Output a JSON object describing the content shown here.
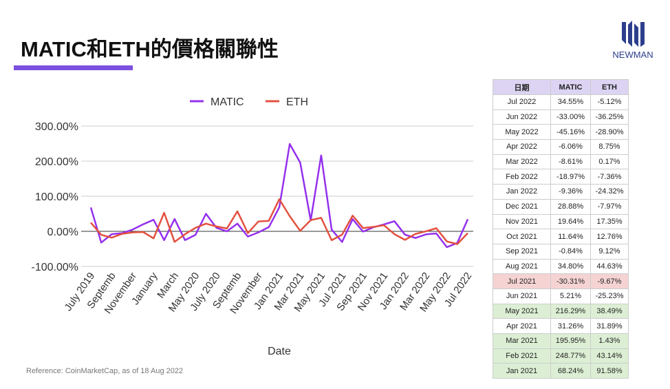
{
  "header": {
    "title": "MATIC和ETH的價格關聯性",
    "logo": "NEWMAN"
  },
  "reference": "Reference: CoinMarketCap, as of 18 Aug 2022",
  "chart_data": {
    "type": "line",
    "x_label": "Date",
    "categories": [
      "July 2019",
      null,
      "Septemb",
      null,
      "November",
      null,
      "January",
      null,
      "March",
      null,
      "May 2020",
      null,
      "July 2020",
      null,
      "Septemb",
      null,
      "November",
      null,
      "Jan 2021",
      null,
      "Mar 2021",
      null,
      "May 2021",
      null,
      "Jul 2021",
      null,
      "Sep 2021",
      null,
      "Nov 2021",
      null,
      "Jan 2022",
      null,
      "Mar 2022",
      null,
      "May 2022",
      null,
      "Jul 2022"
    ],
    "series": [
      {
        "name": "MATIC",
        "color": "#9430ee",
        "values": [
          68,
          -32,
          -8,
          -5,
          5,
          20,
          33,
          -25,
          35,
          -25,
          -10,
          50,
          10,
          0,
          22,
          -15,
          -3,
          12,
          68.24,
          248.77,
          195.95,
          31.26,
          216.29,
          5.21,
          -30.31,
          34.8,
          -0.84,
          11.64,
          19.64,
          28.88,
          -9.36,
          -18.97,
          -8.61,
          -6.06,
          -45.16,
          -33.0,
          34.55
        ]
      },
      {
        "name": "ETH",
        "color": "#e2503f",
        "values": [
          25,
          -10,
          -18,
          -7,
          -3,
          -2,
          -20,
          53,
          -30,
          -8,
          10,
          22,
          14,
          8,
          57,
          -5,
          28,
          30,
          91.58,
          43.14,
          1.43,
          31.89,
          38.49,
          -25.23,
          -9.67,
          44.63,
          9.12,
          12.76,
          17.35,
          -7.97,
          -24.32,
          -7.36,
          0.17,
          8.75,
          -28.9,
          -36.25,
          -5.12
        ]
      }
    ],
    "ylim": [
      -100,
      300
    ],
    "yticks": [
      {
        "value": -100,
        "label": "-100.00%"
      },
      {
        "value": 0,
        "label": "0.00%"
      },
      {
        "value": 100,
        "label": "100.00%"
      },
      {
        "value": 200,
        "label": "200.00%"
      },
      {
        "value": 300,
        "label": "300.00%"
      }
    ],
    "grid": true,
    "legend": "top"
  },
  "table": {
    "header": [
      "日期",
      "MATIC",
      "ETH"
    ],
    "rows": [
      [
        "Jul 2022",
        "34.55%",
        "-5.12%"
      ],
      [
        "Jun 2022",
        "-33.00%",
        "-36.25%"
      ],
      [
        "May 2022",
        "-45.16%",
        "-28.90%"
      ],
      [
        "Apr 2022",
        "-6.06%",
        "8.75%"
      ],
      [
        "Mar 2022",
        "-8.61%",
        "0.17%"
      ],
      [
        "Feb 2022",
        "-18.97%",
        "-7.36%"
      ],
      [
        "Jan 2022",
        "-9.36%",
        "-24.32%"
      ],
      [
        "Dec 2021",
        "28.88%",
        "-7.97%"
      ],
      [
        "Nov 2021",
        "19.64%",
        "17.35%"
      ],
      [
        "Oct 2021",
        "11.64%",
        "12.76%"
      ],
      [
        "Sep 2021",
        "-0.84%",
        "9.12%"
      ],
      [
        "Aug 2021",
        "34.80%",
        "44.63%"
      ],
      [
        "Jul 2021",
        "-30.31%",
        "-9.67%"
      ],
      [
        "Jun 2021",
        "5.21%",
        "-25.23%"
      ],
      [
        "May 2021",
        "216.29%",
        "38.49%"
      ],
      [
        "Apr 2021",
        "31.26%",
        "31.89%"
      ],
      [
        "Mar 2021",
        "195.95%",
        "1.43%"
      ],
      [
        "Feb 2021",
        "248.77%",
        "43.14%"
      ],
      [
        "Jan 2021",
        "68.24%",
        "91.58%"
      ]
    ]
  }
}
